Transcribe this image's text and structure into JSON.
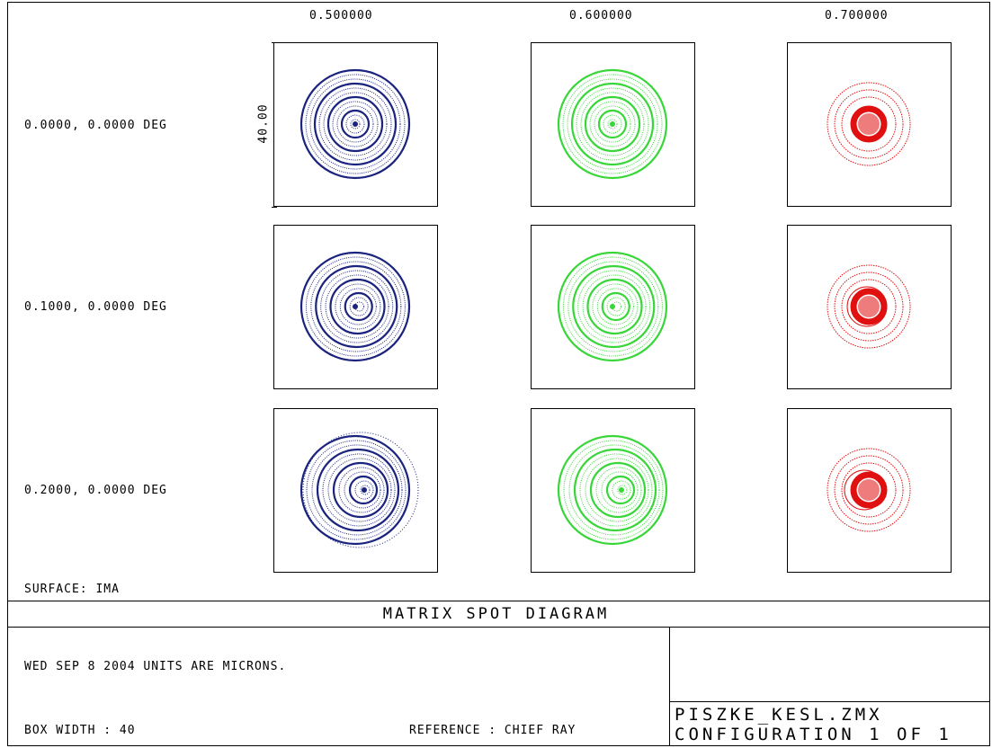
{
  "wavelengths": [
    "0.500000",
    "0.600000",
    "0.700000"
  ],
  "fields": [
    "0.0000, 0.0000 DEG",
    "0.1000, 0.0000 DEG",
    "0.2000, 0.0000 DEG"
  ],
  "scale_label": "40.00",
  "colors": [
    "#1a237e",
    "#39d639",
    "#e01010"
  ],
  "surface": "SURFACE: IMA",
  "title": "MATRIX SPOT DIAGRAM",
  "info": {
    "date_units": "WED SEP 8 2004  UNITS ARE MICRONS.",
    "box_width": "BOX WIDTH  : 40",
    "reference": "REFERENCE  : CHIEF RAY",
    "file": "PISZKE_KESL.ZMX",
    "config": "CONFIGURATION 1 OF 1"
  }
}
